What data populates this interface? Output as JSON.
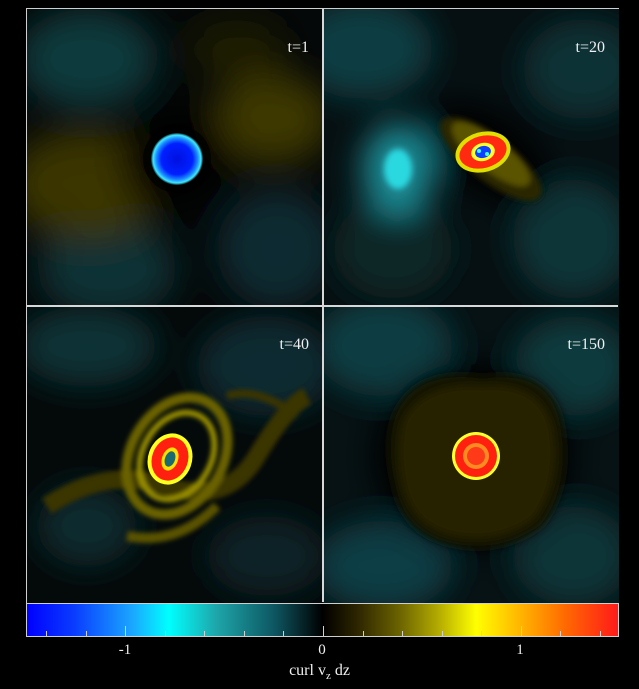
{
  "panels": [
    {
      "label": "t=1"
    },
    {
      "label": "t=20"
    },
    {
      "label": "t=40"
    },
    {
      "label": "t=150"
    }
  ],
  "colorbar": {
    "tick_labels": [
      "-1",
      "0",
      "1"
    ],
    "range": [
      -1.5,
      1.5
    ],
    "label_main": "curl v",
    "label_sub": "z",
    "label_tail": " dz",
    "colors": [
      "#0000ff",
      "#00ffff",
      "#000000",
      "#ffff00",
      "#ff1a1a"
    ]
  }
}
